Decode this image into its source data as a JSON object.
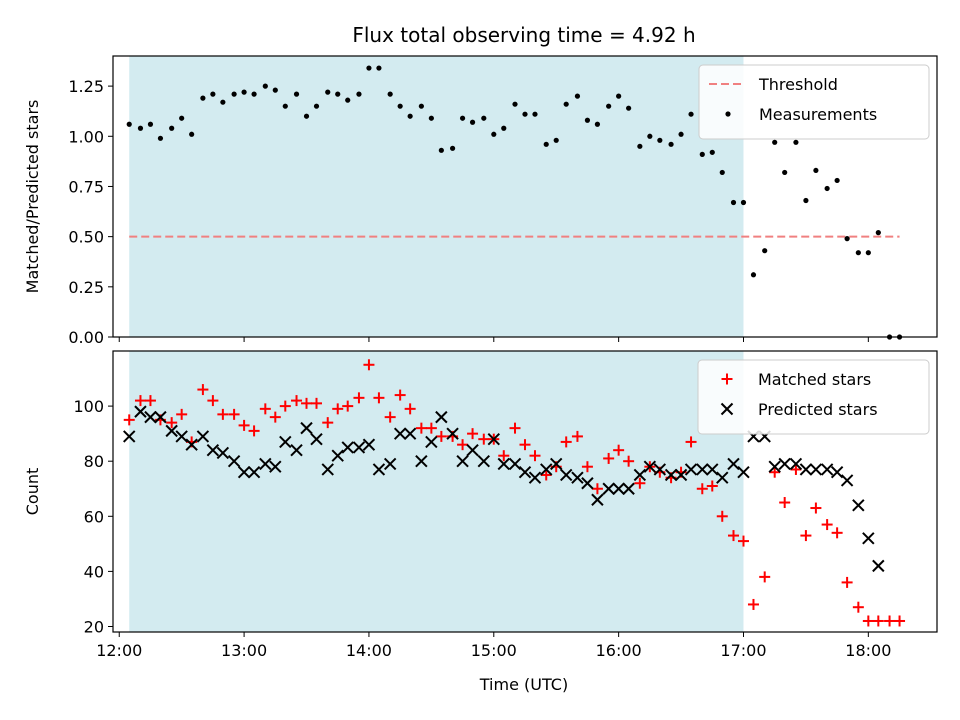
{
  "chart_data": {
    "title": "Flux total observing time = 4.92 h",
    "xlabel": "Time (UTC)",
    "x_unit": "hours UTC",
    "xlim": [
      11.95,
      18.55
    ],
    "xticks": [
      {
        "value": 12,
        "label": "12:00"
      },
      {
        "value": 13,
        "label": "13:00"
      },
      {
        "value": 14,
        "label": "14:00"
      },
      {
        "value": 15,
        "label": "15:00"
      },
      {
        "value": 16,
        "label": "16:00"
      },
      {
        "value": 17,
        "label": "17:00"
      },
      {
        "value": 18,
        "label": "18:00"
      }
    ],
    "highlight_span": {
      "x_start": 12.08,
      "x_end": 17.0,
      "color": "#d3ebf0"
    },
    "panels": [
      {
        "type": "scatter",
        "ylabel": "Matched/Predicted stars",
        "ylim": [
          0,
          1.4
        ],
        "yticks": [
          "0.00",
          "0.25",
          "0.50",
          "0.75",
          "1.00",
          "1.25"
        ],
        "ytick_values": [
          0,
          0.25,
          0.5,
          0.75,
          1.0,
          1.25
        ],
        "legend": {
          "position": "upper right",
          "entries": [
            "Threshold",
            "Measurements"
          ]
        },
        "threshold": {
          "name": "Threshold",
          "y": 0.5,
          "x_start": 12.08,
          "x_end": 18.25,
          "color": "#f08080",
          "style": "dashed"
        },
        "series": [
          {
            "name": "Measurements",
            "marker": "dot",
            "color": "#000000",
            "x": [
              12.08,
              12.17,
              12.25,
              12.33,
              12.42,
              12.5,
              12.58,
              12.67,
              12.75,
              12.83,
              12.92,
              13.0,
              13.08,
              13.17,
              13.25,
              13.33,
              13.42,
              13.5,
              13.58,
              13.67,
              13.75,
              13.83,
              13.92,
              14.0,
              14.08,
              14.17,
              14.25,
              14.33,
              14.42,
              14.5,
              14.58,
              14.67,
              14.75,
              14.83,
              14.92,
              15.0,
              15.08,
              15.17,
              15.25,
              15.33,
              15.42,
              15.5,
              15.58,
              15.67,
              15.75,
              15.83,
              15.92,
              16.0,
              16.08,
              16.17,
              16.25,
              16.33,
              16.42,
              16.5,
              16.58,
              16.67,
              16.75,
              16.83,
              16.92,
              17.0,
              17.08,
              17.17,
              17.25,
              17.33,
              17.42,
              17.5,
              17.58,
              17.67,
              17.75,
              17.83,
              17.92,
              18.0,
              18.08,
              18.17,
              18.25
            ],
            "y": [
              1.06,
              1.04,
              1.06,
              0.99,
              1.04,
              1.09,
              1.01,
              1.19,
              1.21,
              1.17,
              1.21,
              1.22,
              1.21,
              1.25,
              1.23,
              1.15,
              1.21,
              1.1,
              1.15,
              1.22,
              1.21,
              1.18,
              1.21,
              1.34,
              1.34,
              1.21,
              1.15,
              1.1,
              1.15,
              1.09,
              0.93,
              0.94,
              1.09,
              1.07,
              1.09,
              1.01,
              1.04,
              1.16,
              1.11,
              1.11,
              0.96,
              0.98,
              1.16,
              1.2,
              1.08,
              1.06,
              1.15,
              1.2,
              1.14,
              0.95,
              1.0,
              0.98,
              0.96,
              1.01,
              1.11,
              0.91,
              0.92,
              0.82,
              0.67,
              0.67,
              0.31,
              0.43,
              0.97,
              0.82,
              0.97,
              0.68,
              0.83,
              0.74,
              0.78,
              0.49,
              0.42,
              0.42,
              0.52,
              0.0,
              0.0
            ]
          }
        ]
      },
      {
        "type": "scatter",
        "ylabel": "Count",
        "ylim": [
          18,
          120
        ],
        "yticks": [
          "20",
          "40",
          "60",
          "80",
          "100"
        ],
        "ytick_values": [
          20,
          40,
          60,
          80,
          100
        ],
        "legend": {
          "position": "upper right",
          "entries": [
            "Matched stars",
            "Predicted stars"
          ]
        },
        "series": [
          {
            "name": "Matched stars",
            "marker": "plus",
            "color": "#ff0000",
            "x": [
              12.08,
              12.17,
              12.25,
              12.33,
              12.42,
              12.5,
              12.58,
              12.67,
              12.75,
              12.83,
              12.92,
              13.0,
              13.08,
              13.17,
              13.25,
              13.33,
              13.42,
              13.5,
              13.58,
              13.67,
              13.75,
              13.83,
              13.92,
              14.0,
              14.08,
              14.17,
              14.25,
              14.33,
              14.42,
              14.5,
              14.58,
              14.67,
              14.75,
              14.83,
              14.92,
              15.0,
              15.08,
              15.17,
              15.25,
              15.33,
              15.42,
              15.5,
              15.58,
              15.67,
              15.75,
              15.83,
              15.92,
              16.0,
              16.08,
              16.17,
              16.25,
              16.33,
              16.42,
              16.5,
              16.58,
              16.67,
              16.75,
              16.83,
              16.92,
              17.0,
              17.08,
              17.17,
              17.25,
              17.33,
              17.42,
              17.5,
              17.58,
              17.67,
              17.75,
              17.83,
              17.92,
              18.0,
              18.08,
              18.17,
              18.25
            ],
            "y": [
              95,
              102,
              102,
              95,
              94,
              97,
              87,
              106,
              102,
              97,
              97,
              93,
              91,
              99,
              96,
              100,
              102,
              101,
              101,
              94,
              99,
              100,
              103,
              115,
              103,
              96,
              104,
              99,
              92,
              92,
              89,
              89,
              86,
              90,
              88,
              88,
              82,
              92,
              86,
              82,
              75,
              78,
              87,
              89,
              78,
              70,
              81,
              84,
              80,
              72,
              78,
              76,
              74,
              76,
              87,
              70,
              71,
              60,
              53,
              51,
              28,
              38,
              76,
              65,
              77,
              53,
              63,
              57,
              54,
              36,
              27,
              22,
              22,
              22,
              22
            ]
          },
          {
            "name": "Predicted stars",
            "marker": "x",
            "color": "#000000",
            "x": [
              12.08,
              12.17,
              12.25,
              12.33,
              12.42,
              12.5,
              12.58,
              12.67,
              12.75,
              12.83,
              12.92,
              13.0,
              13.08,
              13.17,
              13.25,
              13.33,
              13.42,
              13.5,
              13.58,
              13.67,
              13.75,
              13.83,
              13.92,
              14.0,
              14.08,
              14.17,
              14.25,
              14.33,
              14.42,
              14.5,
              14.58,
              14.67,
              14.75,
              14.83,
              14.92,
              15.0,
              15.08,
              15.17,
              15.25,
              15.33,
              15.42,
              15.5,
              15.58,
              15.67,
              15.75,
              15.83,
              15.92,
              16.0,
              16.08,
              16.17,
              16.25,
              16.33,
              16.42,
              16.5,
              16.58,
              16.67,
              16.75,
              16.83,
              16.92,
              17.0,
              17.08,
              17.17,
              17.25,
              17.33,
              17.42,
              17.5,
              17.58,
              17.67,
              17.75,
              17.83,
              17.92,
              18.0,
              18.08
            ],
            "y": [
              89,
              98,
              96,
              96,
              91,
              89,
              86,
              89,
              84,
              83,
              80,
              76,
              76,
              79,
              78,
              87,
              84,
              92,
              88,
              77,
              82,
              85,
              85,
              86,
              77,
              79,
              90,
              90,
              80,
              87,
              96,
              90,
              80,
              84,
              80,
              88,
              79,
              79,
              76,
              74,
              77,
              79,
              75,
              74,
              72,
              66,
              70,
              70,
              70,
              75,
              78,
              77,
              75,
              75,
              77,
              77,
              77,
              74,
              79,
              76,
              89,
              89,
              78,
              79,
              79,
              77,
              77,
              77,
              76,
              73,
              64,
              52,
              42
            ]
          }
        ]
      }
    ]
  }
}
